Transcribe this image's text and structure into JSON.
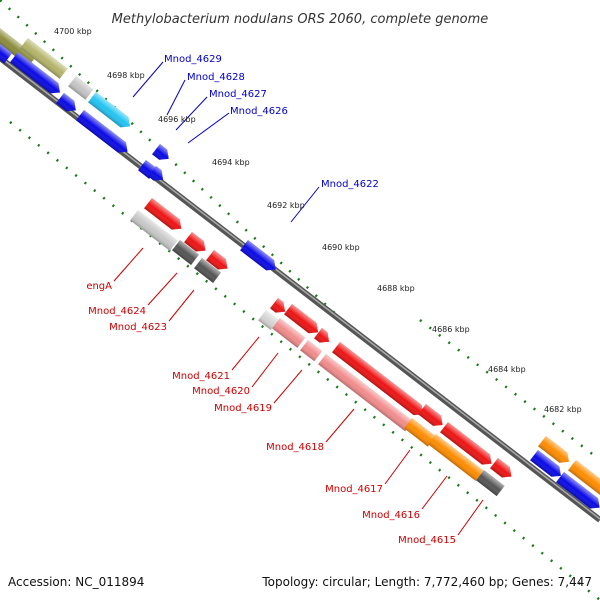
{
  "title": "Methylobacterium nodulans ORS 2060, complete genome",
  "footer": {
    "accession": "Accession: NC_011894",
    "summary": "Topology: circular; Length: 7,772,460 bp; Genes: 7,447"
  },
  "colors": {
    "forward_label": "#0000cc",
    "reverse_label": "#cc0000",
    "tick": "#1a7a1a",
    "backbone": "#666666"
  },
  "ticks": [
    "4700 kbp",
    "4698 kbp",
    "4696 kbp",
    "4694 kbp",
    "4692 kbp",
    "4690 kbp",
    "4688 kbp",
    "4686 kbp",
    "4684 kbp",
    "4682 kbp"
  ],
  "forward_labels": [
    "Mnod_4629",
    "Mnod_4628",
    "Mnod_4627",
    "Mnod_4626",
    "Mnod_4622"
  ],
  "reverse_labels": [
    "engA",
    "Mnod_4624",
    "Mnod_4623",
    "Mnod_4621",
    "Mnod_4620",
    "Mnod_4619",
    "Mnod_4618",
    "Mnod_4617",
    "Mnod_4616",
    "Mnod_4615"
  ]
}
